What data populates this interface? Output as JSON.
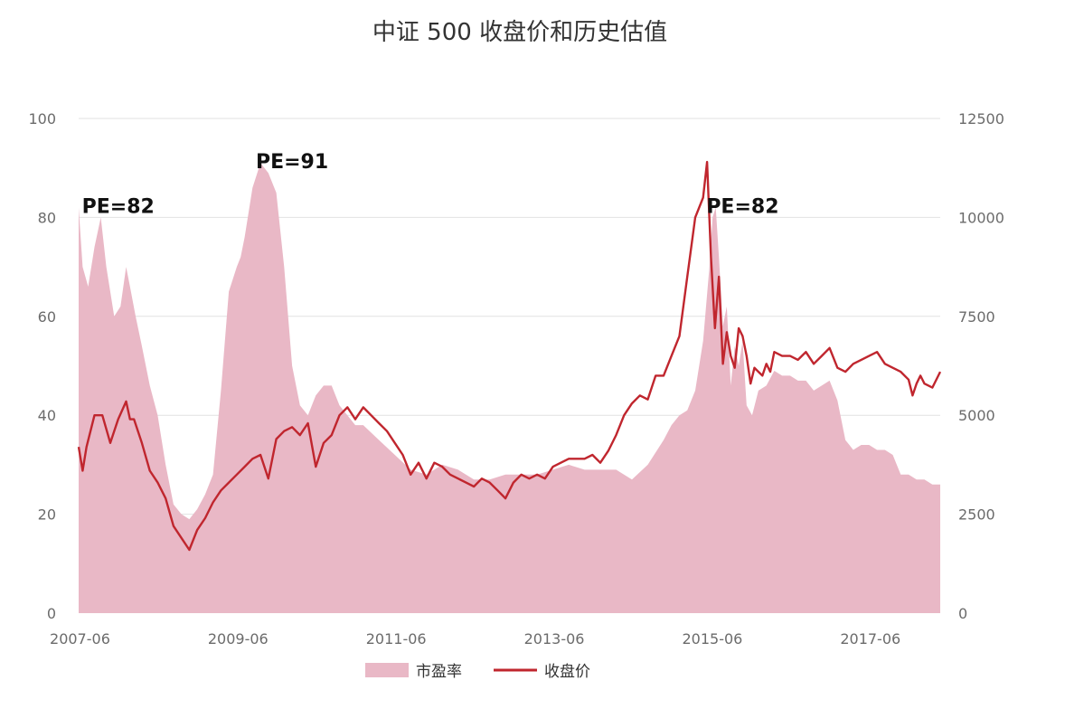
{
  "chart_data": {
    "type": "area",
    "title": "中证 500 收盘价和历史估值",
    "xlabel": "",
    "ylabel": "",
    "x_ticks": [
      "2007-06",
      "2009-06",
      "2011-06",
      "2013-06",
      "2015-06",
      "2017-06"
    ],
    "x_range": [
      2007.4,
      2018.3
    ],
    "y_left": {
      "ticks": [
        "0",
        "20",
        "40",
        "60",
        "80",
        "100"
      ],
      "ylim": [
        0,
        100
      ]
    },
    "y_right": {
      "ticks": [
        "0",
        "2500",
        "5000",
        "7500",
        "10000",
        "12500"
      ],
      "ylim": [
        0,
        12500
      ]
    },
    "grid": true,
    "legend_position": "bottom",
    "series": [
      {
        "name": "市盈率",
        "kind": "area",
        "axis": "left",
        "color": "#e9b8c6",
        "x": [
          2007.4,
          2007.45,
          2007.52,
          2007.6,
          2007.68,
          2007.75,
          2007.85,
          2007.93,
          2008.0,
          2008.05,
          2008.12,
          2008.2,
          2008.3,
          2008.4,
          2008.5,
          2008.6,
          2008.7,
          2008.8,
          2008.9,
          2009.0,
          2009.1,
          2009.2,
          2009.3,
          2009.4,
          2009.45,
          2009.5,
          2009.6,
          2009.7,
          2009.8,
          2009.9,
          2010.0,
          2010.1,
          2010.2,
          2010.3,
          2010.4,
          2010.5,
          2010.6,
          2010.7,
          2010.8,
          2010.9,
          2011.0,
          2011.2,
          2011.4,
          2011.6,
          2011.8,
          2012.0,
          2012.2,
          2012.4,
          2012.6,
          2012.8,
          2013.0,
          2013.2,
          2013.4,
          2013.6,
          2013.8,
          2014.0,
          2014.2,
          2014.4,
          2014.6,
          2014.8,
          2014.9,
          2015.0,
          2015.1,
          2015.2,
          2015.3,
          2015.38,
          2015.42,
          2015.46,
          2015.5,
          2015.55,
          2015.6,
          2015.65,
          2015.7,
          2015.75,
          2015.8,
          2015.85,
          2015.92,
          2016.0,
          2016.1,
          2016.2,
          2016.3,
          2016.4,
          2016.5,
          2016.6,
          2016.7,
          2016.8,
          2016.9,
          2017.0,
          2017.1,
          2017.15,
          2017.2,
          2017.3,
          2017.4,
          2017.5,
          2017.6,
          2017.7,
          2017.8,
          2017.9,
          2018.0,
          2018.1,
          2018.2,
          2018.3
        ],
        "values": [
          82,
          70,
          66,
          74,
          80,
          70,
          60,
          62,
          70,
          66,
          60,
          54,
          46,
          40,
          30,
          22,
          20,
          19,
          21,
          24,
          28,
          45,
          65,
          70,
          72,
          76,
          86,
          91,
          89,
          85,
          70,
          50,
          42,
          40,
          44,
          46,
          46,
          42,
          40,
          38,
          38,
          35,
          32,
          29,
          28,
          30,
          29,
          27,
          27,
          28,
          28,
          28,
          29,
          30,
          29,
          29,
          29,
          27,
          30,
          35,
          38,
          40,
          41,
          45,
          55,
          70,
          80,
          82,
          72,
          58,
          62,
          46,
          54,
          50,
          55,
          42,
          40,
          45,
          46,
          49,
          48,
          48,
          47,
          47,
          45,
          46,
          47,
          43,
          35,
          34,
          33,
          34,
          34,
          33,
          33,
          32,
          28,
          28,
          27,
          27,
          26,
          26
        ]
      },
      {
        "name": "收盘价",
        "kind": "line",
        "axis": "right",
        "color": "#c0262e",
        "x": [
          2007.4,
          2007.45,
          2007.5,
          2007.6,
          2007.7,
          2007.8,
          2007.9,
          2008.0,
          2008.05,
          2008.1,
          2008.2,
          2008.3,
          2008.4,
          2008.5,
          2008.6,
          2008.7,
          2008.8,
          2008.9,
          2009.0,
          2009.1,
          2009.2,
          2009.3,
          2009.4,
          2009.5,
          2009.6,
          2009.7,
          2009.8,
          2009.9,
          2010.0,
          2010.1,
          2010.2,
          2010.3,
          2010.4,
          2010.5,
          2010.6,
          2010.7,
          2010.8,
          2010.9,
          2011.0,
          2011.1,
          2011.2,
          2011.3,
          2011.4,
          2011.5,
          2011.6,
          2011.7,
          2011.8,
          2011.9,
          2012.0,
          2012.1,
          2012.2,
          2012.3,
          2012.4,
          2012.5,
          2012.6,
          2012.7,
          2012.8,
          2012.9,
          2013.0,
          2013.1,
          2013.2,
          2013.3,
          2013.4,
          2013.5,
          2013.6,
          2013.7,
          2013.8,
          2013.9,
          2014.0,
          2014.1,
          2014.2,
          2014.3,
          2014.4,
          2014.5,
          2014.6,
          2014.7,
          2014.8,
          2014.9,
          2015.0,
          2015.1,
          2015.2,
          2015.3,
          2015.35,
          2015.4,
          2015.45,
          2015.5,
          2015.55,
          2015.6,
          2015.65,
          2015.7,
          2015.75,
          2015.8,
          2015.85,
          2015.9,
          2015.95,
          2016.0,
          2016.05,
          2016.1,
          2016.15,
          2016.2,
          2016.3,
          2016.4,
          2016.5,
          2016.6,
          2016.7,
          2016.8,
          2016.9,
          2017.0,
          2017.1,
          2017.2,
          2017.3,
          2017.4,
          2017.5,
          2017.6,
          2017.7,
          2017.8,
          2017.9,
          2017.95,
          2018.0,
          2018.05,
          2018.1,
          2018.2,
          2018.3
        ],
        "values": [
          4200,
          3600,
          4200,
          5000,
          5000,
          4300,
          4900,
          5350,
          4900,
          4900,
          4300,
          3600,
          3300,
          2900,
          2200,
          1900,
          1600,
          2100,
          2400,
          2800,
          3100,
          3300,
          3500,
          3700,
          3900,
          4000,
          3400,
          4400,
          4600,
          4700,
          4500,
          4800,
          3700,
          4300,
          4500,
          5000,
          5200,
          4900,
          5200,
          5000,
          4800,
          4600,
          4300,
          4000,
          3500,
          3800,
          3400,
          3800,
          3700,
          3500,
          3400,
          3300,
          3200,
          3400,
          3300,
          3100,
          2900,
          3300,
          3500,
          3400,
          3500,
          3400,
          3700,
          3800,
          3900,
          3900,
          3900,
          4000,
          3800,
          4100,
          4500,
          5000,
          5300,
          5500,
          5400,
          6000,
          6000,
          6500,
          7000,
          8500,
          10000,
          10500,
          11400,
          9000,
          7200,
          8500,
          6300,
          7100,
          6500,
          6200,
          7200,
          7000,
          6500,
          5800,
          6200,
          6100,
          6000,
          6300,
          6100,
          6600,
          6500,
          6500,
          6400,
          6600,
          6300,
          6500,
          6700,
          6200,
          6100,
          6300,
          6400,
          6500,
          6600,
          6300,
          6200,
          6100,
          5900,
          5500,
          5800,
          6000,
          5800,
          5700,
          6100
        ]
      }
    ],
    "annotations": [
      {
        "text": "PE=82",
        "x": 2007.9,
        "y": 82,
        "axis": "left"
      },
      {
        "text": "PE=91",
        "x": 2010.1,
        "y": 91,
        "axis": "left"
      },
      {
        "text": "PE=82",
        "x": 2015.8,
        "y": 82,
        "axis": "left"
      }
    ]
  }
}
